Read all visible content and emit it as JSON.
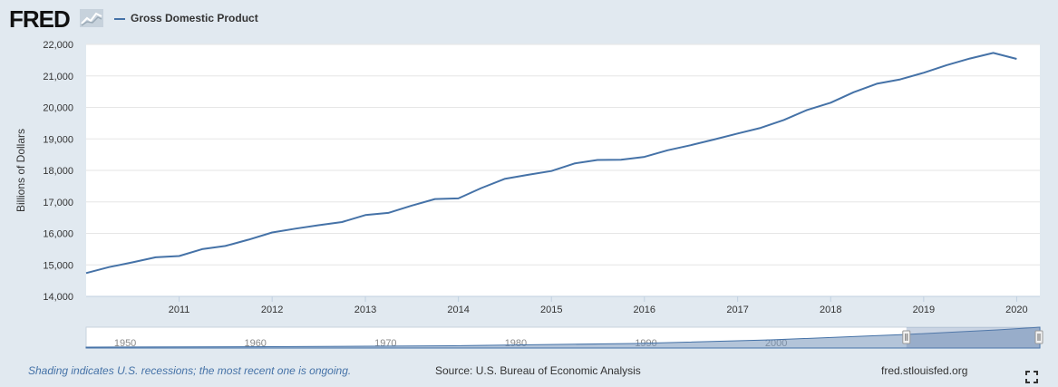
{
  "header": {
    "logo_text": "FRED",
    "logo_icon": "line-graph-icon",
    "legend_label": "Gross Domestic Product",
    "legend_color": "#4572a7"
  },
  "chart_data": {
    "type": "line",
    "title": "",
    "xlabel": "",
    "ylabel": "Billions of Dollars",
    "x_ticks": [
      "2011",
      "2012",
      "2013",
      "2014",
      "2015",
      "2016",
      "2017",
      "2018",
      "2019",
      "2020"
    ],
    "y_ticks": [
      "14,000",
      "15,000",
      "16,000",
      "17,000",
      "18,000",
      "19,000",
      "20,000",
      "21,000",
      "22,000"
    ],
    "ylim": [
      14000,
      22000
    ],
    "xlim": [
      "2010-01-01",
      "2020-04-01"
    ],
    "grid": true,
    "series": [
      {
        "name": "Gross Domestic Product",
        "color": "#4572a7",
        "x": [
          "2010-01-01",
          "2010-04-01",
          "2010-07-01",
          "2010-10-01",
          "2011-01-01",
          "2011-04-01",
          "2011-07-01",
          "2011-10-01",
          "2012-01-01",
          "2012-04-01",
          "2012-07-01",
          "2012-10-01",
          "2013-01-01",
          "2013-04-01",
          "2013-07-01",
          "2013-10-01",
          "2014-01-01",
          "2014-04-01",
          "2014-07-01",
          "2014-10-01",
          "2015-01-01",
          "2015-04-01",
          "2015-07-01",
          "2015-10-01",
          "2016-01-01",
          "2016-04-01",
          "2016-07-01",
          "2016-10-01",
          "2017-01-01",
          "2017-04-01",
          "2017-07-01",
          "2017-10-01",
          "2018-01-01",
          "2018-04-01",
          "2018-07-01",
          "2018-10-01",
          "2019-01-01",
          "2019-04-01",
          "2019-07-01",
          "2019-10-01",
          "2020-01-01"
        ],
        "values": [
          14740,
          14930,
          15080,
          15240,
          15280,
          15500,
          15600,
          15800,
          16030,
          16150,
          16260,
          16360,
          16580,
          16650,
          16880,
          17090,
          17110,
          17440,
          17730,
          17860,
          17980,
          18220,
          18330,
          18340,
          18430,
          18640,
          18800,
          18980,
          19170,
          19350,
          19600,
          19920,
          20150,
          20480,
          20750,
          20890,
          21100,
          21340,
          21550,
          21730,
          21540
        ]
      }
    ],
    "navigator": {
      "x_ticks": [
        "1950",
        "1960",
        "1970",
        "1980",
        "1990",
        "2000"
      ],
      "selected_range": [
        "2010",
        "2020"
      ]
    }
  },
  "footer": {
    "note": "Shading indicates U.S. recessions; the most recent one is ongoing.",
    "source": "Source: U.S. Bureau of Economic Analysis",
    "site": "fred.stlouisfed.org",
    "expand_icon": "fullscreen-icon"
  }
}
